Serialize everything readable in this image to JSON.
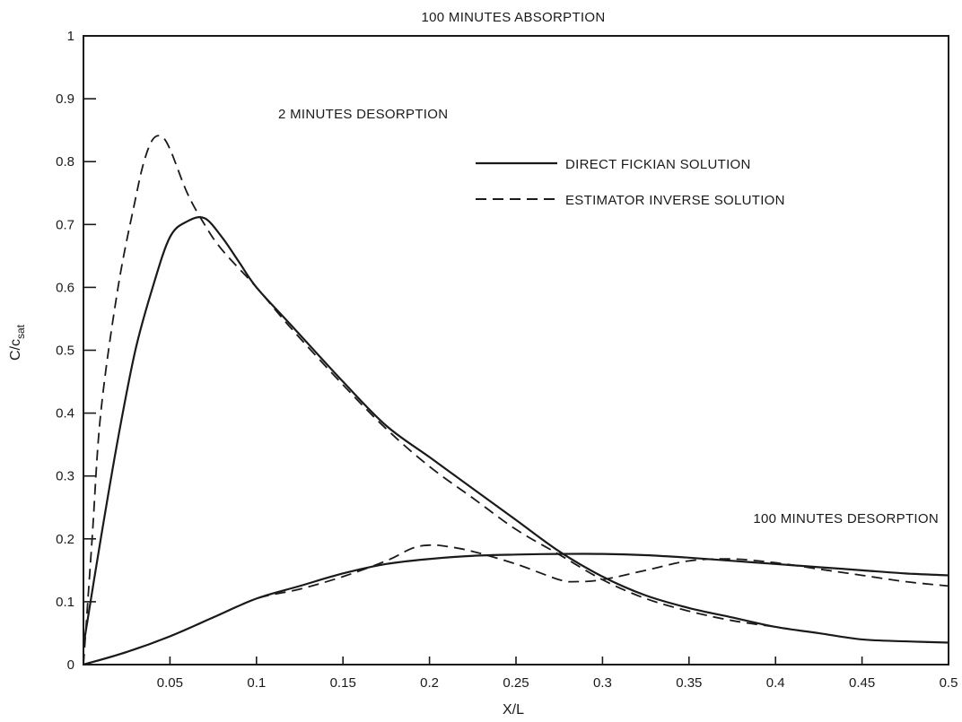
{
  "chart_data": {
    "type": "line",
    "xlabel": "X/L",
    "ylabel_main": "C/c",
    "ylabel_sub": "sat",
    "xlim": [
      0,
      0.5
    ],
    "ylim": [
      0,
      1
    ],
    "x_ticks": [
      0.05,
      0.1,
      0.15,
      0.2,
      0.25,
      0.3,
      0.35,
      0.4,
      0.45,
      0.5
    ],
    "x_tick_labels": [
      "0.05",
      "0.1",
      "0.15",
      "0.2",
      "0.25",
      "0.3",
      "0.35",
      "0.4",
      "0.45",
      "0.5"
    ],
    "y_ticks": [
      0,
      0.1,
      0.2,
      0.3,
      0.4,
      0.5,
      0.6,
      0.7,
      0.8,
      0.9,
      1
    ],
    "y_tick_labels": [
      "0",
      "0.1",
      "0.2",
      "0.3",
      "0.4",
      "0.5",
      "0.6",
      "0.7",
      "0.8",
      "0.9",
      "1"
    ],
    "annotations": {
      "top": "100 MINUTES ABSORPTION",
      "two_min": "2 MINUTES DESORPTION",
      "hundred_min": "100 MINUTES DESORPTION"
    },
    "legend": {
      "position": "top-right",
      "entries": [
        {
          "label": "DIRECT FICKIAN SOLUTION",
          "style": "solid"
        },
        {
          "label": "ESTIMATOR INVERSE SOLUTION",
          "style": "dashed"
        }
      ]
    },
    "colors": {
      "line": "#1a1a1a",
      "axis": "#1a1a1a",
      "background": "#ffffff"
    },
    "series": [
      {
        "legend_entry": "DIRECT FICKIAN SOLUTION",
        "style": "solid",
        "curve": "2 MINUTES DESORPTION",
        "points": [
          [
            0,
            0.03
          ],
          [
            0.01,
            0.2
          ],
          [
            0.02,
            0.36
          ],
          [
            0.03,
            0.5
          ],
          [
            0.04,
            0.6
          ],
          [
            0.05,
            0.68
          ],
          [
            0.06,
            0.705
          ],
          [
            0.07,
            0.71
          ],
          [
            0.08,
            0.68
          ],
          [
            0.09,
            0.64
          ],
          [
            0.1,
            0.6
          ],
          [
            0.12,
            0.54
          ],
          [
            0.15,
            0.45
          ],
          [
            0.175,
            0.38
          ],
          [
            0.2,
            0.33
          ],
          [
            0.225,
            0.28
          ],
          [
            0.25,
            0.23
          ],
          [
            0.275,
            0.18
          ],
          [
            0.3,
            0.14
          ],
          [
            0.325,
            0.11
          ],
          [
            0.35,
            0.09
          ],
          [
            0.375,
            0.075
          ],
          [
            0.4,
            0.06
          ],
          [
            0.425,
            0.05
          ],
          [
            0.45,
            0.04
          ],
          [
            0.475,
            0.037
          ],
          [
            0.5,
            0.035
          ]
        ]
      },
      {
        "legend_entry": "ESTIMATOR INVERSE SOLUTION",
        "style": "dashed",
        "curve": "2 MINUTES DESORPTION",
        "points": [
          [
            0,
            0
          ],
          [
            0.005,
            0.2
          ],
          [
            0.01,
            0.4
          ],
          [
            0.02,
            0.6
          ],
          [
            0.03,
            0.74
          ],
          [
            0.035,
            0.8
          ],
          [
            0.04,
            0.835
          ],
          [
            0.045,
            0.84
          ],
          [
            0.05,
            0.82
          ],
          [
            0.06,
            0.75
          ],
          [
            0.07,
            0.7
          ],
          [
            0.08,
            0.66
          ],
          [
            0.1,
            0.6
          ],
          [
            0.12,
            0.535
          ],
          [
            0.15,
            0.445
          ],
          [
            0.175,
            0.375
          ],
          [
            0.2,
            0.315
          ],
          [
            0.225,
            0.265
          ],
          [
            0.25,
            0.215
          ],
          [
            0.275,
            0.175
          ],
          [
            0.3,
            0.135
          ],
          [
            0.325,
            0.105
          ],
          [
            0.35,
            0.085
          ],
          [
            0.375,
            0.07
          ],
          [
            0.4,
            0.06
          ]
        ]
      },
      {
        "legend_entry": "DIRECT FICKIAN SOLUTION",
        "style": "solid",
        "curve": "100 MINUTES DESORPTION",
        "points": [
          [
            0,
            0
          ],
          [
            0.025,
            0.02
          ],
          [
            0.05,
            0.045
          ],
          [
            0.075,
            0.075
          ],
          [
            0.1,
            0.105
          ],
          [
            0.125,
            0.125
          ],
          [
            0.15,
            0.145
          ],
          [
            0.175,
            0.16
          ],
          [
            0.2,
            0.168
          ],
          [
            0.225,
            0.173
          ],
          [
            0.25,
            0.175
          ],
          [
            0.275,
            0.176
          ],
          [
            0.3,
            0.176
          ],
          [
            0.325,
            0.174
          ],
          [
            0.35,
            0.17
          ],
          [
            0.375,
            0.165
          ],
          [
            0.4,
            0.16
          ],
          [
            0.425,
            0.155
          ],
          [
            0.45,
            0.15
          ],
          [
            0.475,
            0.145
          ],
          [
            0.5,
            0.142
          ]
        ]
      },
      {
        "legend_entry": "ESTIMATOR INVERSE SOLUTION",
        "style": "dashed",
        "curve": "100 MINUTES DESORPTION",
        "points": [
          [
            0,
            0
          ],
          [
            0.025,
            0.02
          ],
          [
            0.05,
            0.045
          ],
          [
            0.075,
            0.075
          ],
          [
            0.1,
            0.105
          ],
          [
            0.125,
            0.12
          ],
          [
            0.15,
            0.14
          ],
          [
            0.175,
            0.165
          ],
          [
            0.19,
            0.185
          ],
          [
            0.2,
            0.19
          ],
          [
            0.21,
            0.188
          ],
          [
            0.225,
            0.18
          ],
          [
            0.25,
            0.16
          ],
          [
            0.275,
            0.135
          ],
          [
            0.285,
            0.132
          ],
          [
            0.3,
            0.135
          ],
          [
            0.325,
            0.15
          ],
          [
            0.35,
            0.165
          ],
          [
            0.375,
            0.168
          ],
          [
            0.4,
            0.162
          ],
          [
            0.425,
            0.152
          ],
          [
            0.45,
            0.142
          ],
          [
            0.475,
            0.132
          ],
          [
            0.5,
            0.125
          ]
        ]
      }
    ]
  }
}
